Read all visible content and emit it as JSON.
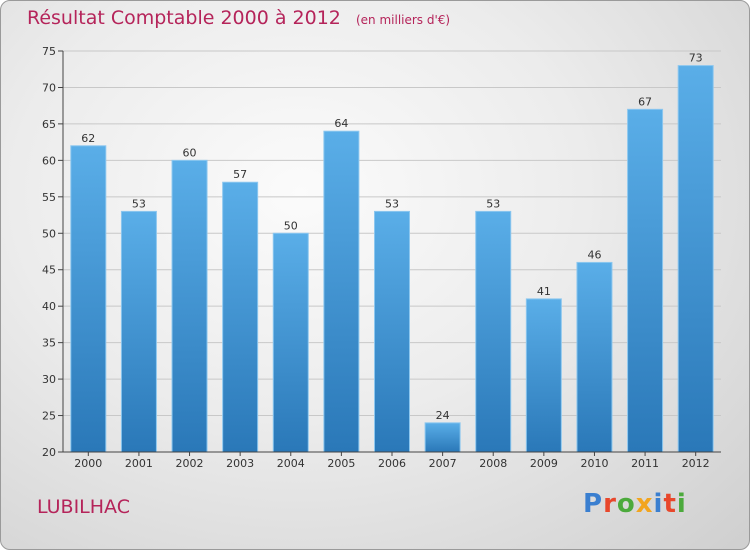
{
  "title": "Résultat Comptable 2000 à 2012",
  "subtitle": "(en milliers d'€)",
  "commune": "LUBILHAC",
  "logo": {
    "letters": [
      "P",
      "r",
      "o",
      "x",
      "i",
      "t",
      "i"
    ],
    "colors": [
      "#3a7fd0",
      "#e8472b",
      "#4caa3c",
      "#f2a51f",
      "#3a7fd0",
      "#e8472b",
      "#4caa3c"
    ]
  },
  "colors": {
    "bar_light": "#5aaee8",
    "bar_dark": "#2a78b8",
    "title": "#b5245a",
    "grid": "#c8c8c8",
    "axis": "#444444"
  },
  "chart_data": {
    "type": "bar",
    "title": "Résultat Comptable 2000 à 2012",
    "subtitle": "(en milliers d'€)",
    "categories": [
      "2000",
      "2001",
      "2002",
      "2003",
      "2004",
      "2005",
      "2006",
      "2007",
      "2008",
      "2009",
      "2010",
      "2011",
      "2012"
    ],
    "values": [
      62,
      53,
      60,
      57,
      50,
      64,
      53,
      24,
      53,
      41,
      46,
      67,
      73
    ],
    "ylim": [
      20,
      75
    ],
    "yticks": [
      20,
      25,
      30,
      35,
      40,
      45,
      50,
      55,
      60,
      65,
      70,
      75
    ],
    "grid": true,
    "data_labels": true
  }
}
